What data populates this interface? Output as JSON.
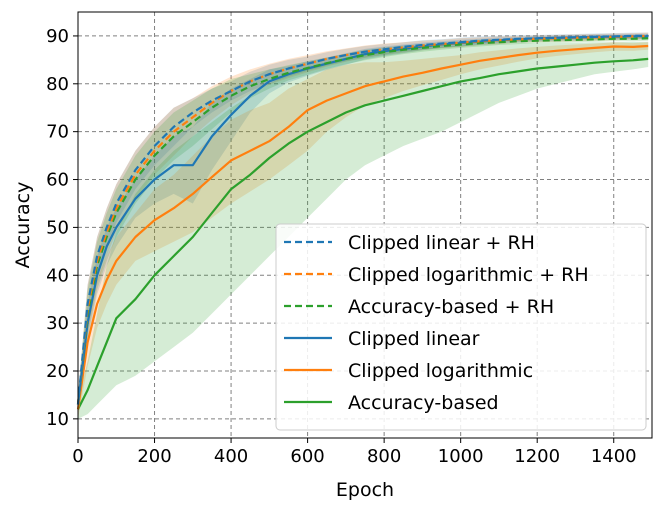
{
  "chart_data": {
    "type": "line",
    "title": "",
    "xlabel": "Epoch",
    "ylabel": "Accuracy",
    "xlim": [
      0,
      1500
    ],
    "ylim": [
      6,
      95
    ],
    "xticks": [
      0,
      200,
      400,
      600,
      800,
      1000,
      1200,
      1400
    ],
    "yticks": [
      10,
      20,
      30,
      40,
      50,
      60,
      70,
      80,
      90
    ],
    "grid": true,
    "legend_position": "bottom-right",
    "x": [
      0,
      25,
      50,
      75,
      100,
      150,
      200,
      250,
      300,
      350,
      400,
      450,
      500,
      550,
      600,
      650,
      700,
      750,
      800,
      850,
      900,
      950,
      1000,
      1050,
      1100,
      1150,
      1200,
      1250,
      1300,
      1350,
      1400,
      1450,
      1490
    ],
    "series": [
      {
        "name": "Clipped linear + RH",
        "color": "#1f77b4",
        "linestyle": "dashed",
        "values": [
          13,
          34,
          44,
          50,
          55,
          62,
          67,
          71,
          74,
          76.5,
          78.5,
          80.5,
          82,
          83.2,
          84.2,
          85.2,
          86,
          86.7,
          87.2,
          87.7,
          88.1,
          88.4,
          88.7,
          89,
          89.2,
          89.4,
          89.5,
          89.6,
          89.7,
          89.8,
          89.9,
          90,
          90
        ]
      },
      {
        "name": "Clipped logarithmic + RH",
        "color": "#ff7f0e",
        "linestyle": "dashed",
        "values": [
          13,
          33,
          43,
          49,
          54,
          61,
          66,
          70,
          73,
          76,
          78.5,
          80.5,
          82,
          83.2,
          84.2,
          85.2,
          86,
          86.7,
          87.2,
          87.6,
          88,
          88.3,
          88.6,
          88.9,
          89.1,
          89.3,
          89.4,
          89.5,
          89.6,
          89.7,
          89.8,
          89.9,
          90
        ]
      },
      {
        "name": "Accuracy-based + RH",
        "color": "#2ca02c",
        "linestyle": "dashed",
        "values": [
          13,
          32,
          42,
          48,
          53,
          60,
          65,
          69,
          72,
          75,
          77.5,
          79.5,
          81,
          82.3,
          83.3,
          84.3,
          85.2,
          86,
          86.6,
          87.1,
          87.5,
          87.9,
          88.2,
          88.5,
          88.7,
          88.9,
          89,
          89.1,
          89.2,
          89.3,
          89.4,
          89.4,
          89.5
        ]
      },
      {
        "name": "Clipped linear",
        "color": "#1f77b4",
        "linestyle": "solid",
        "values": [
          13,
          30,
          40,
          46,
          50,
          56,
          60,
          63,
          63,
          69,
          73.5,
          77.5,
          80.5,
          82,
          83.2,
          84.2,
          85.2,
          86.2,
          86.8,
          87.3,
          87.8,
          88.2,
          88.5,
          88.8,
          89.1,
          89.3,
          89.5,
          89.6,
          89.7,
          89.8,
          89.8,
          89.9,
          89.9
        ]
      },
      {
        "name": "Clipped logarithmic",
        "color": "#ff7f0e",
        "linestyle": "solid",
        "values": [
          12,
          26,
          34,
          39,
          43,
          48,
          51.5,
          54,
          57,
          60.5,
          64,
          66,
          68,
          71,
          74.5,
          76.5,
          78,
          79.5,
          80.5,
          81.5,
          82.3,
          83.2,
          84,
          84.8,
          85.4,
          86,
          86.5,
          86.9,
          87.2,
          87.5,
          87.8,
          87.7,
          87.9
        ]
      },
      {
        "name": "Accuracy-based",
        "color": "#2ca02c",
        "linestyle": "solid",
        "values": [
          12,
          16,
          21,
          26,
          31,
          35,
          40,
          44,
          48,
          53,
          58,
          61,
          64.5,
          67.5,
          70,
          72,
          74,
          75.5,
          76.5,
          77.5,
          78.5,
          79.5,
          80.5,
          81.2,
          82,
          82.6,
          83.2,
          83.6,
          84,
          84.4,
          84.7,
          84.9,
          85.2
        ]
      }
    ],
    "bands": [
      {
        "series": "Clipped linear + RH",
        "lower": [
          11,
          30,
          40,
          46,
          51,
          58,
          63,
          67,
          71,
          74,
          76.5,
          78.5,
          80,
          81.5,
          82.7,
          83.8,
          84.7,
          85.5,
          86.1,
          86.7,
          87.1,
          87.5,
          87.8,
          88.1,
          88.4,
          88.6,
          88.8,
          88.9,
          89,
          89.1,
          89.2,
          89.3,
          89.3
        ],
        "upper": [
          15,
          38,
          48,
          54,
          59,
          66,
          71,
          75,
          77,
          79,
          80.5,
          82.5,
          84,
          85,
          85.7,
          86.6,
          87.3,
          87.9,
          88.3,
          88.7,
          89.1,
          89.3,
          89.6,
          89.9,
          90,
          90.2,
          90.2,
          90.3,
          90.4,
          90.5,
          90.6,
          90.7,
          90.7
        ]
      },
      {
        "series": "Clipped logarithmic + RH",
        "lower": [
          11,
          28,
          38,
          44,
          49,
          56,
          61,
          65,
          69,
          72.5,
          75.5,
          78,
          79.8,
          81.2,
          82.4,
          83.6,
          84.6,
          85.4,
          86,
          86.5,
          87,
          87.4,
          87.7,
          88.1,
          88.3,
          88.6,
          88.7,
          88.8,
          88.9,
          89,
          89.1,
          89.2,
          89.3
        ],
        "upper": [
          15,
          38,
          48,
          54,
          59,
          66,
          71,
          75,
          77,
          79.5,
          81.5,
          83,
          84.2,
          85.2,
          86,
          86.8,
          87.4,
          88,
          88.4,
          88.7,
          89,
          89.2,
          89.5,
          89.7,
          89.9,
          90,
          90.1,
          90.2,
          90.3,
          90.4,
          90.5,
          90.6,
          90.7
        ]
      },
      {
        "series": "Accuracy-based + RH",
        "lower": [
          11,
          27,
          37,
          43,
          48,
          55,
          60,
          64,
          67,
          70.5,
          74,
          77,
          79,
          80.7,
          81.9,
          83.1,
          84.1,
          84.9,
          85.6,
          86.2,
          86.7,
          87.1,
          87.5,
          87.8,
          88.1,
          88.3,
          88.5,
          88.6,
          88.7,
          88.8,
          88.9,
          88.9,
          89
        ],
        "upper": [
          15,
          37,
          47,
          53,
          58,
          65,
          70,
          74,
          76.5,
          79,
          81,
          82,
          83,
          83.9,
          84.7,
          85.5,
          86.3,
          87.1,
          87.6,
          88,
          88.3,
          88.7,
          88.9,
          89.2,
          89.3,
          89.5,
          89.5,
          89.6,
          89.7,
          89.8,
          89.9,
          89.9,
          90
        ]
      },
      {
        "series": "Clipped linear",
        "lower": [
          11,
          26,
          36,
          42,
          46,
          52,
          55,
          57,
          55,
          62,
          68,
          74,
          78,
          80.3,
          81.7,
          82.9,
          84,
          85.1,
          85.8,
          86.4,
          87,
          87.5,
          87.8,
          88.2,
          88.5,
          88.8,
          89,
          89.1,
          89.2,
          89.3,
          89.3,
          89.4,
          89.4
        ],
        "upper": [
          15,
          34,
          44,
          50,
          54,
          60,
          65,
          69,
          71,
          76,
          79,
          81,
          83,
          83.7,
          84.7,
          85.5,
          86.4,
          87.3,
          87.8,
          88.2,
          88.6,
          88.9,
          89.2,
          89.4,
          89.7,
          89.8,
          90,
          90.1,
          90.2,
          90.3,
          90.3,
          90.4,
          90.4
        ]
      },
      {
        "series": "Clipped logarithmic",
        "lower": [
          10,
          21,
          29,
          34,
          38,
          43,
          45,
          47,
          49,
          52,
          55,
          57.5,
          60,
          63,
          66,
          70,
          73,
          75.5,
          77,
          78.5,
          79.7,
          80.8,
          82,
          83,
          83.8,
          84.6,
          85.3,
          85.8,
          86.2,
          86.6,
          86.9,
          86.9,
          87.1
        ],
        "upper": [
          14,
          31,
          39,
          44,
          48,
          53,
          58,
          61,
          65,
          69,
          72.5,
          74.5,
          76,
          79,
          81,
          83,
          84,
          84.5,
          84.5,
          84.8,
          85.2,
          85.6,
          86,
          86.6,
          87,
          87.4,
          87.7,
          88,
          88.2,
          88.4,
          88.7,
          88.5,
          88.7
        ]
      },
      {
        "series": "Accuracy-based",
        "lower": [
          10,
          11,
          13,
          15,
          17,
          19,
          22,
          25,
          28,
          32,
          36,
          40,
          44,
          48,
          52,
          56,
          60,
          63,
          65,
          67,
          68.5,
          70,
          72,
          74,
          76,
          77.5,
          79,
          80,
          81,
          82,
          82.5,
          83,
          83.5
        ],
        "upper": [
          14,
          22,
          32,
          42,
          49,
          57,
          62,
          66,
          69,
          72,
          75,
          77.5,
          80,
          82,
          83.5,
          84.5,
          85.5,
          86.3,
          86.8,
          87.2,
          87.5,
          87.8,
          88,
          88.2,
          88.4,
          88.5,
          88.5,
          88.6,
          88.6,
          88.7,
          88.7,
          88.8,
          88.8
        ]
      }
    ]
  }
}
